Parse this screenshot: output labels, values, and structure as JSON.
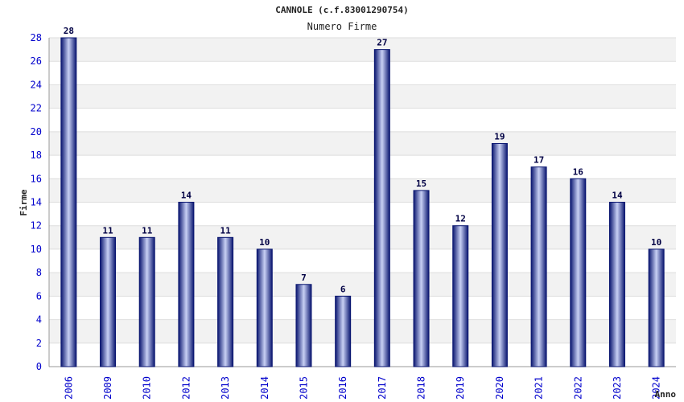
{
  "chart_data": {
    "type": "bar",
    "title": "CANNOLE (c.f.83001290754)",
    "subtitle": "Numero Firme",
    "xlabel": "Anno",
    "ylabel": "Firme",
    "ylim": [
      0,
      28
    ],
    "yticks": [
      0,
      2,
      4,
      6,
      8,
      10,
      12,
      14,
      16,
      18,
      20,
      22,
      24,
      26,
      28
    ],
    "categories": [
      "2006",
      "2009",
      "2010",
      "2012",
      "2013",
      "2014",
      "2015",
      "2016",
      "2017",
      "2018",
      "2019",
      "2020",
      "2021",
      "2022",
      "2023",
      "2024"
    ],
    "values": [
      28,
      11,
      11,
      14,
      11,
      10,
      7,
      6,
      27,
      15,
      12,
      19,
      17,
      16,
      14,
      10
    ],
    "grid": true,
    "colors": {
      "bar_dark": "#0a1670",
      "bar_light": "#c8d0f4",
      "band_alt": "#f2f2f2",
      "tick_text": "#0000cc",
      "label_text": "#000044"
    }
  }
}
